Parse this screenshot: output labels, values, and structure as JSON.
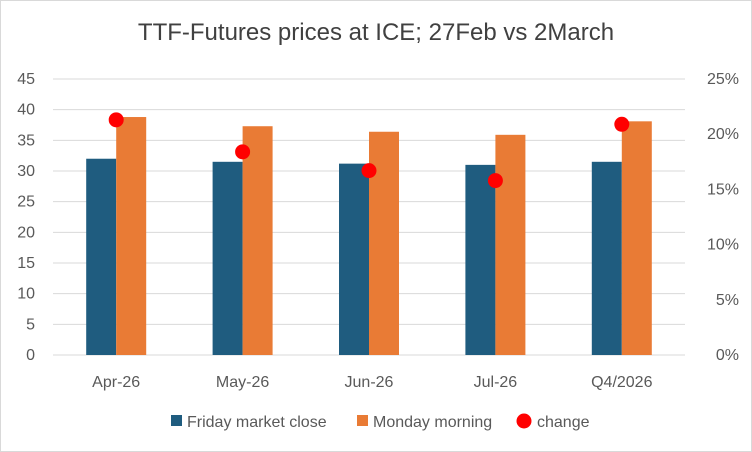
{
  "chart_data": {
    "type": "bar",
    "title": "TTF-Futures prices at ICE; 27Feb vs 2March",
    "categories": [
      "Apr-26",
      "May-26",
      "Jun-26",
      "Jul-26",
      "Q4/2026"
    ],
    "series": [
      {
        "name": "Friday market close",
        "type": "bar",
        "axis": "left",
        "color": "#1f5c7f",
        "values": [
          32.0,
          31.5,
          31.2,
          31.0,
          31.5
        ]
      },
      {
        "name": "Monday morning",
        "type": "bar",
        "axis": "left",
        "color": "#e97b35",
        "values": [
          38.8,
          37.3,
          36.4,
          35.9,
          38.1
        ]
      },
      {
        "name": "change",
        "type": "scatter",
        "axis": "right",
        "color": "#ff0000",
        "values": [
          0.213,
          0.184,
          0.167,
          0.158,
          0.209
        ]
      }
    ],
    "y_left": {
      "min": 0,
      "max": 45,
      "ticks": [
        "0",
        "5",
        "10",
        "15",
        "20",
        "25",
        "30",
        "35",
        "40",
        "45"
      ]
    },
    "y_right": {
      "min": 0,
      "max": 0.25,
      "ticks": [
        "0%",
        "5%",
        "10%",
        "15%",
        "20%",
        "25%"
      ]
    },
    "grid": true,
    "legend": "bottom"
  }
}
